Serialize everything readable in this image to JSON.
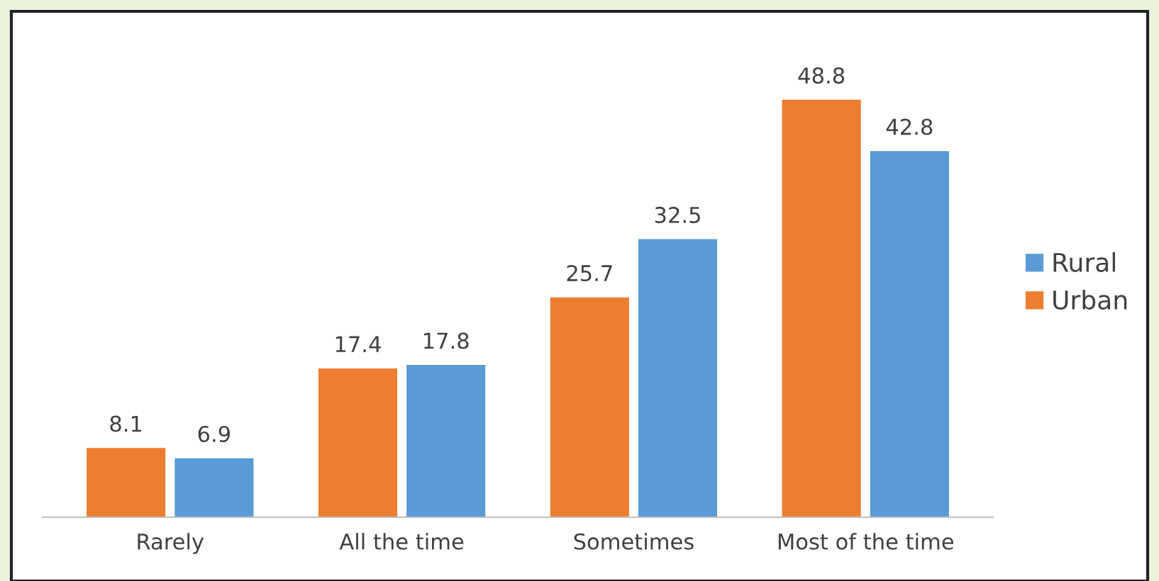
{
  "chart_data": {
    "type": "bar",
    "categories": [
      "Rarely",
      "All the time",
      "Sometimes",
      "Most of the time"
    ],
    "series": [
      {
        "name": "Urban",
        "color": "#ed7d31",
        "values": [
          8.1,
          17.4,
          25.7,
          48.8
        ]
      },
      {
        "name": "Rural",
        "color": "#5b9bd5",
        "values": [
          6.9,
          17.8,
          32.5,
          42.8
        ]
      }
    ],
    "data_labels": true,
    "legend": "right"
  }
}
